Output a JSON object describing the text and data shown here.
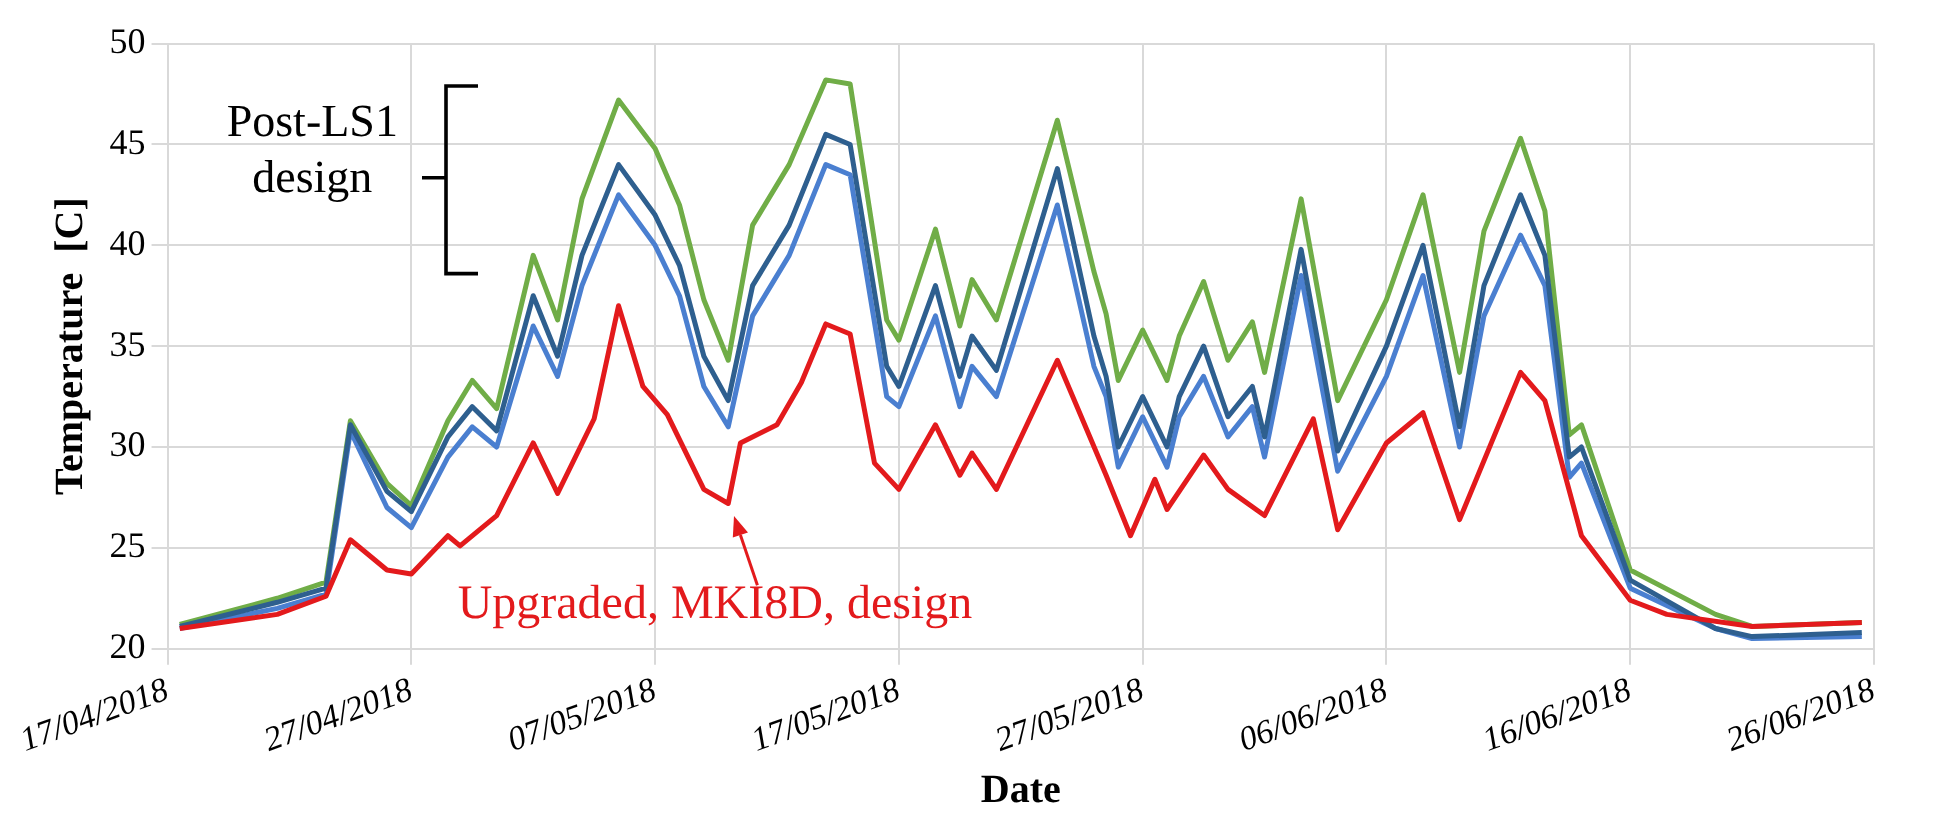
{
  "chart_data": {
    "type": "line",
    "xlabel": "Date",
    "ylabel": "Temperature  [C]",
    "annotations": [
      "Post-LS1 design"
    ],
    "xlim": [
      "2018-04-17",
      "2018-06-26"
    ],
    "xticks": [
      {
        "value": "2018-04-17",
        "label": "17/04/2018"
      },
      {
        "value": "2018-04-27",
        "label": "27/04/2018"
      },
      {
        "value": "2018-05-07",
        "label": "07/05/2018"
      },
      {
        "value": "2018-05-17",
        "label": "17/05/2018"
      },
      {
        "value": "2018-05-27",
        "label": "27/05/2018"
      },
      {
        "value": "2018-06-06",
        "label": "06/06/2018"
      },
      {
        "value": "2018-06-16",
        "label": "16/06/2018"
      },
      {
        "value": "2018-06-26",
        "label": "26/06/2018"
      }
    ],
    "ylim": [
      20,
      50
    ],
    "yticks": [
      20,
      25,
      30,
      35,
      40,
      45,
      50
    ],
    "grid": true,
    "x": [
      "2018-04-17T12:00",
      "2018-04-21T12:00",
      "2018-04-23T12:00",
      "2018-04-24T12:00",
      "2018-04-26",
      "2018-04-27",
      "2018-04-28T12:00",
      "2018-04-29T12:00",
      "2018-04-30T12:00",
      "2018-05-02",
      "2018-05-03",
      "2018-05-04",
      "2018-05-05T12:00",
      "2018-05-07",
      "2018-05-08",
      "2018-05-09",
      "2018-05-10",
      "2018-05-11",
      "2018-05-12T12:00",
      "2018-05-14",
      "2018-05-15",
      "2018-05-16T12:00",
      "2018-05-17",
      "2018-05-18T12:00",
      "2018-05-19T12:00",
      "2018-05-20",
      "2018-05-21",
      "2018-05-23T12:00",
      "2018-05-25",
      "2018-05-25T12:00",
      "2018-05-26",
      "2018-05-27",
      "2018-05-28",
      "2018-05-28T12:00",
      "2018-05-29T12:00",
      "2018-05-30T12:00",
      "2018-05-31T12:00",
      "2018-06-01",
      "2018-06-02T12:00",
      "2018-06-04",
      "2018-06-06",
      "2018-06-07T12:00",
      "2018-06-09",
      "2018-06-10",
      "2018-06-11T12:00",
      "2018-06-12T12:00",
      "2018-06-13T12:00",
      "2018-06-14",
      "2018-06-16",
      "2018-06-19T12:00",
      "2018-06-21",
      "2018-06-25T12:00"
    ],
    "series": [
      {
        "color": "#70ad47",
        "values": [
          21.2,
          22.5,
          23.3,
          31.3,
          28.2,
          27.1,
          31.3,
          33.3,
          31.9,
          39.5,
          36.3,
          42.3,
          47.2,
          44.8,
          42.0,
          37.3,
          34.3,
          41.0,
          44.0,
          48.2,
          48.0,
          36.3,
          35.3,
          40.8,
          36.0,
          38.3,
          36.3,
          46.2,
          38.7,
          36.6,
          33.3,
          35.8,
          33.3,
          35.5,
          38.2,
          34.3,
          36.2,
          33.7,
          42.3,
          32.3,
          37.3,
          42.5,
          33.7,
          40.7,
          45.3,
          41.7,
          30.6,
          31.1,
          23.9,
          21.7,
          21.1,
          21.3
        ]
      },
      {
        "color": "#4a7fd0",
        "values": [
          21.0,
          22.0,
          22.7,
          30.8,
          27.0,
          26.0,
          29.5,
          31.0,
          30.0,
          36.0,
          33.5,
          38.0,
          42.5,
          40.0,
          37.5,
          33.0,
          31.0,
          36.5,
          39.5,
          44.0,
          43.5,
          32.5,
          32.0,
          36.5,
          32.0,
          34.0,
          32.5,
          42.0,
          34.0,
          32.5,
          29.0,
          31.5,
          29.0,
          31.5,
          33.5,
          30.5,
          32.0,
          29.5,
          38.5,
          28.8,
          33.5,
          38.5,
          30.0,
          36.5,
          40.5,
          38.0,
          28.5,
          29.2,
          23.0,
          21.0,
          20.5,
          20.6
        ]
      },
      {
        "color": "#2e5f8f",
        "values": [
          21.1,
          22.3,
          23.0,
          31.1,
          27.8,
          26.8,
          30.5,
          32.0,
          30.8,
          37.5,
          34.5,
          39.5,
          44.0,
          41.5,
          39.0,
          34.5,
          32.3,
          38.0,
          41.0,
          45.5,
          45.0,
          34.0,
          33.0,
          38.0,
          33.5,
          35.5,
          33.8,
          43.8,
          35.5,
          33.5,
          30.0,
          32.5,
          30.0,
          32.5,
          35.0,
          31.5,
          33.0,
          30.5,
          39.8,
          29.8,
          35.0,
          40.0,
          31.0,
          38.0,
          42.5,
          39.5,
          29.5,
          30.0,
          23.4,
          21.0,
          20.6,
          20.8
        ]
      },
      {
        "name": "Upgraded, MKI8D, design",
        "color": "#e31a1c",
        "x": [
          "2018-04-17T12:00",
          "2018-04-21T12:00",
          "2018-04-23T12:00",
          "2018-04-24T12:00",
          "2018-04-26",
          "2018-04-27",
          "2018-04-28T12:00",
          "2018-04-29",
          "2018-04-30T12:00",
          "2018-05-02",
          "2018-05-03",
          "2018-05-04T12:00",
          "2018-05-05T12:00",
          "2018-05-06T12:00",
          "2018-05-07T12:00",
          "2018-05-09",
          "2018-05-10",
          "2018-05-10T12:00",
          "2018-05-12",
          "2018-05-13",
          "2018-05-14",
          "2018-05-15",
          "2018-05-16",
          "2018-05-17",
          "2018-05-18T12:00",
          "2018-05-19T12:00",
          "2018-05-20",
          "2018-05-21",
          "2018-05-23T12:00",
          "2018-05-25T12:00",
          "2018-05-26T12:00",
          "2018-05-27T12:00",
          "2018-05-28",
          "2018-05-29T12:00",
          "2018-05-30T12:00",
          "2018-06-01",
          "2018-06-03",
          "2018-06-04",
          "2018-06-06",
          "2018-06-07T12:00",
          "2018-06-09",
          "2018-06-11T12:00",
          "2018-06-12T12:00",
          "2018-06-14",
          "2018-06-16",
          "2018-06-17T12:00",
          "2018-06-21",
          "2018-06-25T12:00"
        ],
        "values": [
          21.0,
          21.7,
          22.6,
          25.4,
          23.9,
          23.7,
          25.6,
          25.1,
          26.6,
          30.2,
          27.7,
          31.4,
          37.0,
          33.0,
          31.6,
          27.9,
          27.2,
          30.2,
          31.1,
          33.2,
          36.1,
          35.6,
          29.2,
          27.9,
          31.1,
          28.6,
          29.7,
          27.9,
          34.3,
          28.6,
          25.6,
          28.4,
          26.9,
          29.6,
          27.9,
          26.6,
          31.4,
          25.9,
          30.2,
          31.7,
          26.4,
          33.7,
          32.3,
          25.6,
          22.4,
          21.7,
          21.1,
          21.3
        ]
      }
    ]
  }
}
